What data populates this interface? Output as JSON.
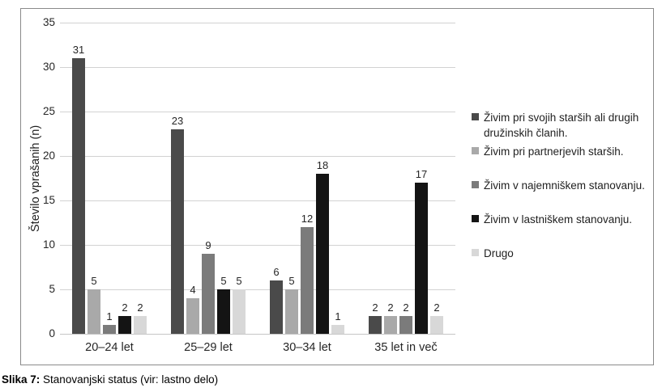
{
  "figure": {
    "caption": {
      "label": "Slika 7:",
      "text": "Stanovanjski status (vir: lastno delo)"
    }
  },
  "chart_data": {
    "type": "bar",
    "title": "",
    "xlabel": "",
    "ylabel": "Število vprašanih (n)",
    "ylim": [
      0,
      35
    ],
    "ytick_step": 5,
    "grid": true,
    "legend_position": "right",
    "grid_color": "#d2d2d2",
    "axis_color": "#c6c6c6",
    "border_color": "#8a8a8a",
    "text_color": "#262626",
    "categories": [
      "20–24 let",
      "25–29 let",
      "30–34 let",
      "35 let in več"
    ],
    "series": [
      {
        "name": "Živim pri svojih starših ali drugih družinskih članih.",
        "color": "#4a4a4a",
        "values": [
          31,
          23,
          6,
          2
        ]
      },
      {
        "name": "Živim pri partnerjevih starših.",
        "color": "#a9a9a9",
        "values": [
          5,
          4,
          5,
          2
        ]
      },
      {
        "name": "Živim v najemniškem stanovanju.",
        "color": "#7b7b7b",
        "values": [
          1,
          9,
          12,
          2
        ]
      },
      {
        "name": "Živim v lastniškem stanovanju.",
        "color": "#141414",
        "values": [
          2,
          5,
          18,
          17
        ]
      },
      {
        "name": "Drugo",
        "color": "#d8d8d8",
        "values": [
          2,
          5,
          1,
          2
        ]
      }
    ]
  }
}
